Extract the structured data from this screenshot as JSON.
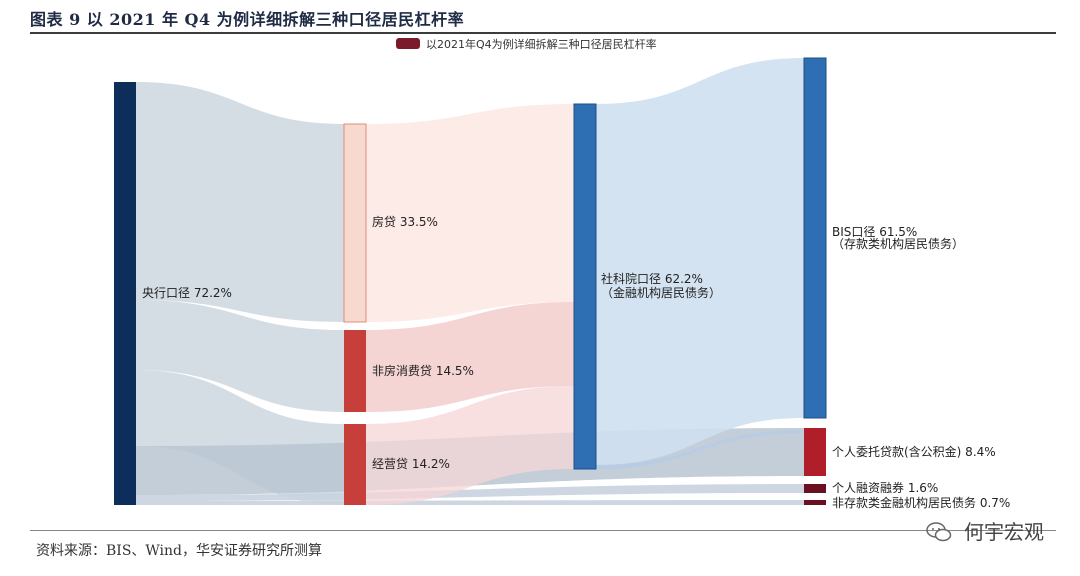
{
  "header": {
    "title": "图表 9 以 2021 年 Q4 为例详细拆解三种口径居民杠杆率"
  },
  "footer": {
    "source": "资料来源：BIS、Wind，华安证券研究所测算",
    "watermark": "何宇宏观"
  },
  "chart_data": {
    "type": "sankey",
    "legend": {
      "label": "以2021年Q4为例详细拆解三种口径居民杠杆率",
      "color": "#7a1a2a",
      "position": "top-center"
    },
    "nodes": [
      {
        "id": "central",
        "label": "央行口径 72.2%",
        "value": 72.2,
        "color": "#0d2d5a"
      },
      {
        "id": "mortgage",
        "label": "房贷 33.5%",
        "value": 33.5,
        "color": "#f7d9cf"
      },
      {
        "id": "nonmort",
        "label": "非房消费贷  14.5%",
        "value": 14.5,
        "color": "#c63f3b"
      },
      {
        "id": "business",
        "label": "经营贷 14.2%",
        "value": 14.2,
        "color": "#c63f3b"
      },
      {
        "id": "cass",
        "label": "社科院口径 62.2%",
        "label2": "（金融机构居民债务）",
        "value": 62.2,
        "color": "#2e6fb3"
      },
      {
        "id": "bis",
        "label": "BIS口径 61.5%",
        "label2": "（存款类机构居民债务）",
        "value": 61.5,
        "color": "#2e6fb3"
      },
      {
        "id": "entrust",
        "label": "个人委托贷款(含公积金) 8.4%",
        "value": 8.4,
        "color": "#b01e2a"
      },
      {
        "id": "margin",
        "label": "个人融资融券 1.6%",
        "value": 1.6,
        "color": "#6b1020"
      },
      {
        "id": "nondep",
        "label": "非存款类金融机构居民债务 0.7%",
        "value": 0.7,
        "color": "#6b1020"
      }
    ]
  }
}
